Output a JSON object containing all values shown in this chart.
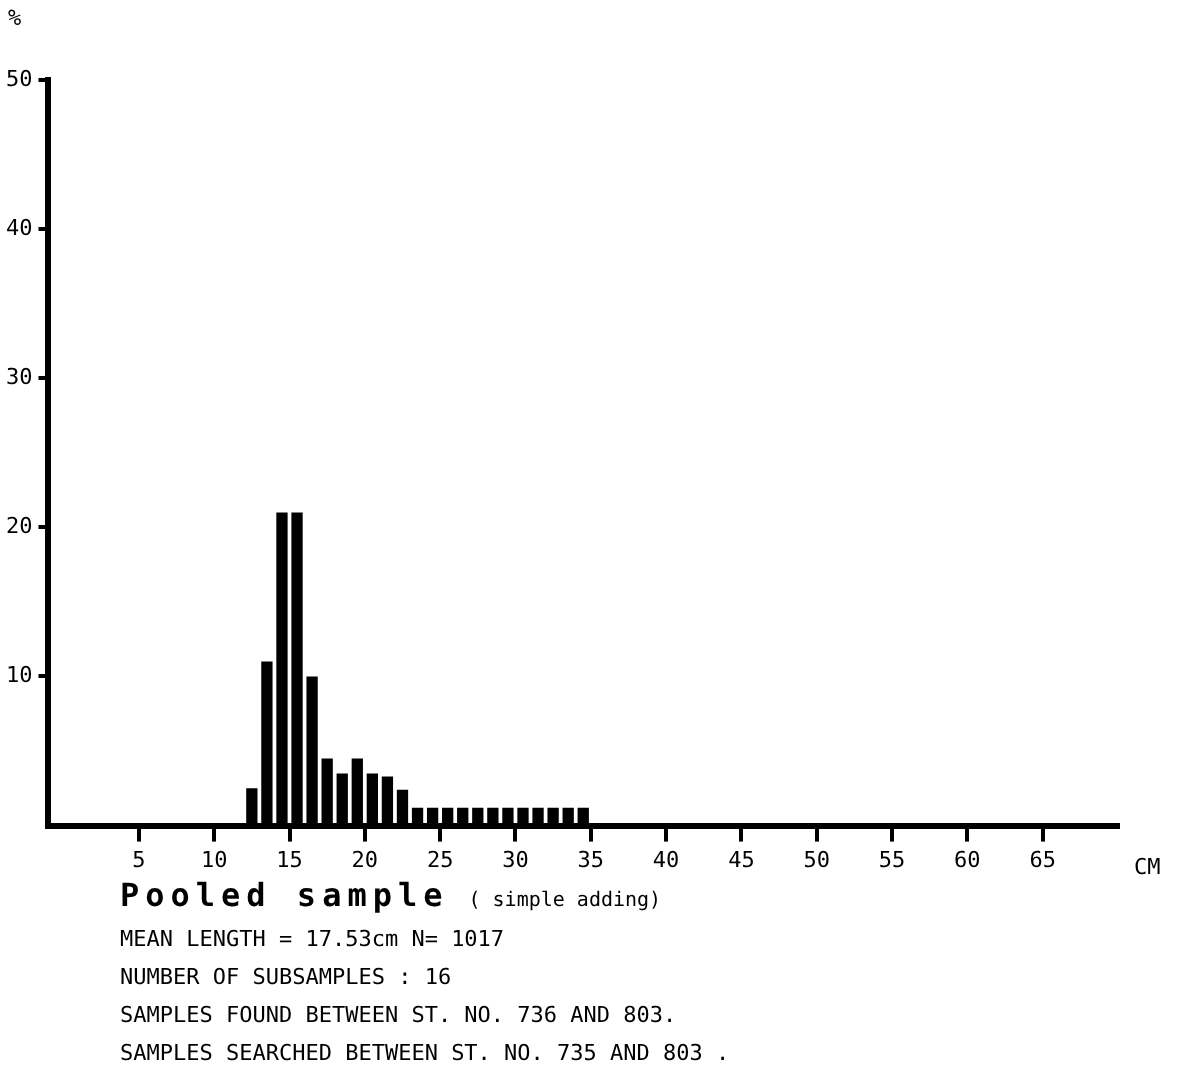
{
  "chart_data": {
    "type": "histogram",
    "title": "Pooled sample",
    "subtitle": "( simple adding)",
    "xlabel": "CM",
    "ylabel": "%",
    "bins": [
      0,
      1,
      2,
      3,
      4,
      5,
      6,
      7,
      8,
      9,
      10,
      11,
      12,
      13,
      14,
      15,
      16,
      17,
      18,
      19,
      20,
      21,
      22,
      23,
      24,
      25,
      26,
      27,
      28,
      29,
      30,
      31,
      32,
      33,
      34,
      35,
      36,
      37,
      38,
      39,
      40,
      41,
      42,
      43,
      44,
      45,
      46,
      47,
      48,
      49,
      50,
      51,
      52,
      53,
      54,
      55,
      56,
      57,
      58,
      59,
      60,
      61,
      62,
      63,
      64,
      65,
      66,
      67,
      68,
      69,
      70
    ],
    "values": [
      0,
      0,
      0,
      0,
      0,
      0,
      0,
      0,
      0,
      0,
      0,
      0,
      2.5,
      11,
      21,
      21,
      10,
      4.5,
      3.5,
      4.5,
      3.5,
      3.3,
      2.4,
      1.2,
      1.2,
      1.2,
      1.2,
      1.2,
      1.2,
      1.2,
      1.2,
      1.2,
      1.2,
      1.2,
      1.2,
      0,
      0,
      0,
      0,
      0,
      0,
      0,
      0,
      0,
      0,
      0,
      0,
      0,
      0,
      0,
      0,
      0,
      0,
      0,
      0,
      0,
      0,
      0,
      0,
      0,
      0,
      0,
      0,
      0,
      0,
      0,
      0,
      0,
      0,
      0
    ],
    "color": "#000000",
    "xlim": [
      -1,
      70
    ],
    "xticks": [
      5,
      10,
      15,
      20,
      25,
      30,
      35,
      40,
      45,
      50,
      55,
      60,
      65
    ],
    "ylim": [
      0,
      50
    ],
    "yticks": [
      10,
      20,
      30,
      40,
      50
    ],
    "grid": false,
    "legend": false,
    "annotations": [
      "MEAN LENGTH = 17.53cm  N= 1017",
      "NUMBER OF SUBSAMPLES : 16",
      "SAMPLES FOUND BETWEEN ST. NO. 736 AND  803.",
      "SAMPLES SEARCHED BETWEEN ST. NO. 735 AND  803 ."
    ]
  }
}
